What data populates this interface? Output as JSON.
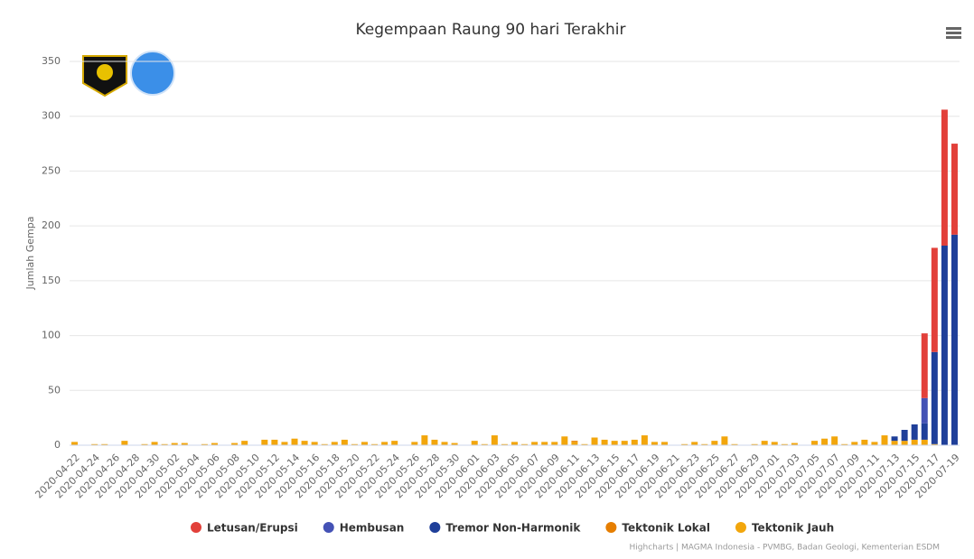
{
  "chart_data": {
    "type": "stacked-bar",
    "title": "Kegempaan Raung 90 hari Terakhir",
    "y_label": "Jumlah Gempa",
    "credits": "Highcharts | MAGMA Indonesia - PVMBG, Badan Geologi, Kementerian ESDM",
    "categories": [
      "2020-04-22",
      null,
      "2020-04-24",
      null,
      "2020-04-26",
      null,
      "2020-04-28",
      null,
      "2020-04-30",
      null,
      "2020-05-02",
      null,
      "2020-05-04",
      null,
      "2020-05-06",
      null,
      "2020-05-08",
      null,
      "2020-05-10",
      null,
      "2020-05-12",
      null,
      "2020-05-14",
      null,
      "2020-05-16",
      null,
      "2020-05-18",
      null,
      "2020-05-20",
      null,
      "2020-05-22",
      null,
      "2020-05-24",
      null,
      "2020-05-26",
      null,
      "2020-05-28",
      null,
      "2020-05-30",
      null,
      "2020-06-01",
      null,
      "2020-06-03",
      null,
      "2020-06-05",
      null,
      "2020-06-07",
      null,
      "2020-06-09",
      null,
      "2020-06-11",
      null,
      "2020-06-13",
      null,
      "2020-06-15",
      null,
      "2020-06-17",
      null,
      "2020-06-19",
      null,
      "2020-06-21",
      null,
      "2020-06-23",
      null,
      "2020-06-25",
      null,
      "2020-06-27",
      null,
      "2020-06-29",
      null,
      "2020-07-01",
      null,
      "2020-07-03",
      null,
      "2020-07-05",
      null,
      "2020-07-07",
      null,
      "2020-07-09",
      null,
      "2020-07-11",
      null,
      "2020-07-13",
      null,
      "2020-07-15",
      null,
      "2020-07-17",
      null,
      "2020-07-19"
    ],
    "series": [
      {
        "name": "Letusan/Erupsi",
        "color": "#e2403a",
        "values": [
          0,
          0,
          0,
          0,
          0,
          0,
          0,
          0,
          0,
          0,
          0,
          0,
          0,
          0,
          0,
          0,
          0,
          0,
          0,
          0,
          0,
          0,
          0,
          0,
          0,
          0,
          0,
          0,
          0,
          0,
          0,
          0,
          0,
          0,
          0,
          0,
          0,
          0,
          0,
          0,
          0,
          0,
          0,
          0,
          0,
          0,
          0,
          0,
          0,
          0,
          0,
          0,
          0,
          0,
          0,
          0,
          0,
          0,
          0,
          0,
          0,
          0,
          0,
          0,
          0,
          0,
          0,
          0,
          0,
          0,
          0,
          0,
          0,
          0,
          0,
          0,
          0,
          0,
          0,
          0,
          0,
          0,
          0,
          0,
          0,
          59,
          95,
          124,
          83
        ]
      },
      {
        "name": "Hembusan",
        "color": "#4452b5",
        "values": [
          0,
          0,
          0,
          0,
          0,
          0,
          0,
          0,
          0,
          0,
          0,
          0,
          0,
          0,
          0,
          0,
          0,
          0,
          0,
          0,
          0,
          0,
          0,
          0,
          0,
          0,
          0,
          0,
          0,
          0,
          0,
          0,
          0,
          0,
          0,
          0,
          0,
          0,
          0,
          0,
          0,
          0,
          0,
          0,
          0,
          0,
          0,
          0,
          0,
          0,
          0,
          0,
          0,
          0,
          0,
          0,
          0,
          0,
          0,
          0,
          0,
          0,
          0,
          0,
          0,
          0,
          0,
          0,
          0,
          0,
          0,
          0,
          0,
          0,
          0,
          0,
          0,
          0,
          0,
          0,
          0,
          0,
          0,
          0,
          0,
          23,
          0,
          0,
          0
        ]
      },
      {
        "name": "Tremor Non-Harmonik",
        "color": "#1f3f99",
        "values": [
          0,
          0,
          0,
          0,
          0,
          0,
          0,
          0,
          0,
          0,
          0,
          0,
          0,
          0,
          0,
          0,
          0,
          0,
          0,
          0,
          0,
          0,
          0,
          0,
          0,
          0,
          0,
          0,
          0,
          0,
          0,
          0,
          0,
          0,
          0,
          0,
          0,
          0,
          0,
          0,
          0,
          0,
          0,
          0,
          0,
          0,
          0,
          0,
          0,
          0,
          0,
          0,
          0,
          0,
          0,
          0,
          0,
          0,
          0,
          0,
          0,
          0,
          0,
          0,
          0,
          0,
          0,
          0,
          0,
          0,
          0,
          0,
          0,
          0,
          0,
          0,
          0,
          0,
          0,
          0,
          0,
          0,
          4,
          10,
          14,
          15,
          84,
          182,
          192
        ]
      },
      {
        "name": "Tektonik Lokal",
        "color": "#e67e00",
        "values": [
          0,
          0,
          0,
          0,
          0,
          0,
          0,
          0,
          0,
          0,
          0,
          0,
          0,
          0,
          0,
          0,
          0,
          0,
          0,
          0,
          0,
          0,
          0,
          0,
          0,
          0,
          0,
          0,
          0,
          0,
          0,
          0,
          0,
          0,
          0,
          0,
          0,
          0,
          0,
          0,
          0,
          0,
          0,
          0,
          0,
          0,
          0,
          0,
          0,
          0,
          1,
          0,
          0,
          0,
          0,
          0,
          0,
          0,
          0,
          0,
          0,
          0,
          0,
          0,
          0,
          0,
          0,
          0,
          0,
          0,
          0,
          0,
          0,
          0,
          0,
          0,
          0,
          0,
          0,
          0,
          0,
          0,
          0,
          0,
          0,
          0,
          0,
          0,
          0
        ]
      },
      {
        "name": "Tektonik Jauh",
        "color": "#f2a60c",
        "values": [
          3,
          0,
          1,
          1,
          0,
          4,
          0,
          1,
          3,
          1,
          2,
          2,
          0,
          1,
          2,
          0,
          2,
          4,
          0,
          5,
          5,
          3,
          6,
          4,
          3,
          1,
          3,
          5,
          1,
          3,
          1,
          3,
          4,
          0,
          3,
          9,
          5,
          3,
          2,
          0,
          4,
          1,
          9,
          1,
          3,
          1,
          3,
          3,
          3,
          8,
          3,
          1,
          7,
          5,
          4,
          4,
          5,
          9,
          3,
          3,
          0,
          1,
          3,
          1,
          4,
          8,
          1,
          0,
          1,
          4,
          3,
          1,
          2,
          0,
          4,
          6,
          8,
          1,
          3,
          5,
          3,
          9,
          4,
          4,
          5,
          5,
          1,
          0,
          0
        ]
      }
    ],
    "ylim": [
      0,
      350
    ],
    "yticks": [
      0,
      50,
      100,
      150,
      200,
      250,
      300,
      350
    ],
    "grid": true
  }
}
